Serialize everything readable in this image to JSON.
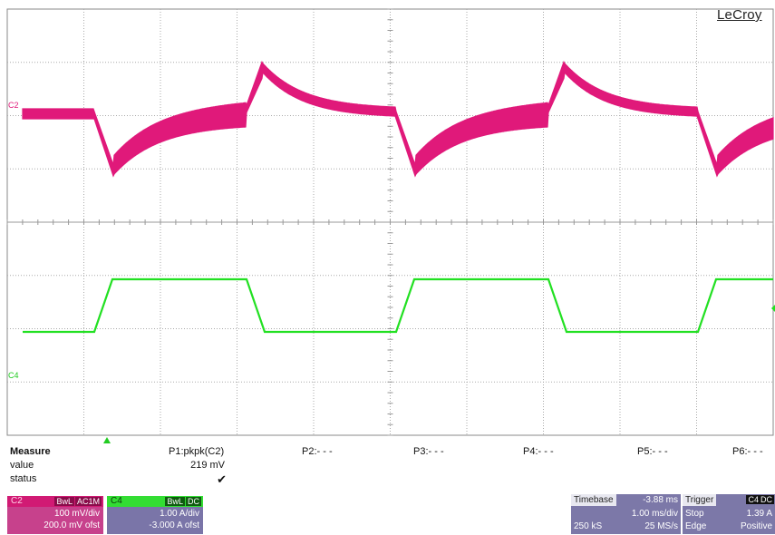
{
  "brand": "LeCroy",
  "traces": {
    "c2_label": "C2",
    "c4_label": "C4",
    "c2_color": "#e0197a",
    "c4_color": "#22e022"
  },
  "measure": {
    "title": "Measure",
    "row_value": "value",
    "row_status": "status",
    "p1": "P1:pkpk(C2)",
    "p1_value": "219 mV",
    "p1_status": "✔",
    "p2": "P2:- - -",
    "p3": "P3:- - -",
    "p4": "P4:- - -",
    "p5": "P5:- - -",
    "p6": "P6:- - -"
  },
  "ch2": {
    "name": "C2",
    "tag1": "BwL",
    "tag2": "AC1M",
    "scale": "100 mV/div",
    "offset": "200.0 mV ofst",
    "color": "#c7418c"
  },
  "ch4": {
    "name": "C4",
    "tag1": "BwL",
    "tag2": "DC",
    "scale": "1.00 A/div",
    "offset": "-3.000 A ofst",
    "color": "#7a75a8"
  },
  "timebase": {
    "label": "Timebase",
    "delay": "-3.88 ms",
    "per_div": "1.00 ms/div",
    "samples": "250 kS",
    "rate": "25 MS/s"
  },
  "trigger": {
    "label": "Trigger",
    "source": "C4",
    "coupling": "DC",
    "mode": "Stop",
    "level": "1.39 A",
    "type": "Edge",
    "slope": "Positive"
  }
}
